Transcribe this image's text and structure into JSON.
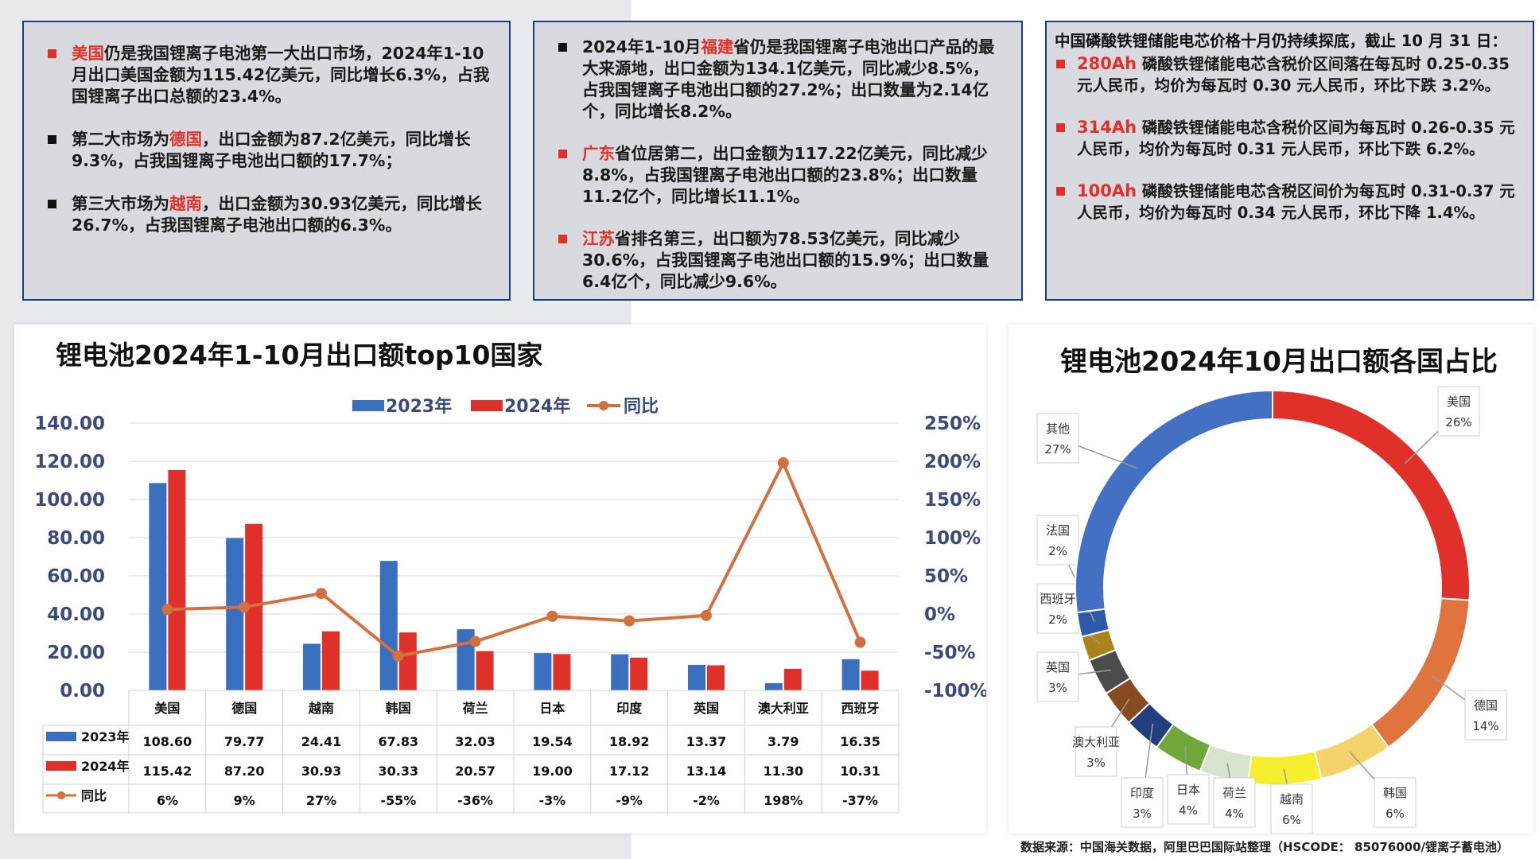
{
  "markets_box": {
    "b1": {
      "hl": "美国",
      "rest": "仍是我国锂离子电池第一大出口市场，2024年1-10月出口美国金额为115.42亿美元，同比增长6.3%，占我国锂离子出口总额的23.4%。"
    },
    "b2": {
      "pre": "第二大市场为",
      "hl": "德国",
      "rest": "，出口金额为87.2亿美元，同比增长9.3%，占我国锂离子电池出口额的17.7%；"
    },
    "b3": {
      "pre": "第三大市场为",
      "hl": "越南",
      "rest": "，出口金额为30.93亿美元，同比增长26.7%，占我国锂离子电池出口额的6.3%。"
    }
  },
  "provinces_box": {
    "b1": {
      "pre": "2024年1-10月",
      "hl": "福建",
      "rest": "省仍是我国锂离子电池出口产品的最大来源地，出口金额为134.1亿美元，同比减少8.5%，占我国锂离子电池出口额的27.2%；出口数量为2.14亿个，同比增长8.2%。"
    },
    "b2": {
      "hl": "广东",
      "rest": "省位居第二，出口金额为117.22亿美元，同比减少8.8%，占我国锂离子电池出口额的23.8%；出口数量11.2亿个，同比增长11.1%。"
    },
    "b3": {
      "hl": "江苏",
      "rest": "省排名第三，出口额为78.53亿美元，同比减少30.6%，占我国锂离子电池出口额的15.9%；出口数量6.4亿个，同比减少9.6%。"
    }
  },
  "prices_box": {
    "intro": "中国磷酸铁锂储能电芯价格十月仍持续探底，截止 10 月 31 日：",
    "b1": {
      "hl": "280Ah",
      "rest": " 磷酸铁锂储能电芯含税价区间落在每瓦时 0.25-0.35 元人民币，均价为每瓦时 0.30 元人民币，环比下跌 3.2%。"
    },
    "b2": {
      "hl": "314Ah",
      "rest": " 磷酸铁锂储能电芯含税价区间为每瓦时 0.26-0.35 元人民币，均价为每瓦时 0.31 元人民币，环比下跌 6.2%。"
    },
    "b3": {
      "hl": "100Ah",
      "rest": " 磷酸铁锂储能电芯含税区间价为每瓦时 0.31-0.37 元人民币，均价为每瓦时 0.34 元人民币，环比下降 1.4%。"
    }
  },
  "source_note": "数据来源：中国海关数据，阿里巴巴国际站整理（HSCODE： 85076000/锂离子蓄电池）",
  "colors": {
    "blue": "#3a6fc0",
    "red": "#e0302a",
    "orange": "#d4703f",
    "highlight": "#e0302a"
  },
  "chart_data": [
    {
      "type": "bar",
      "title": "锂电池2024年1-10月出口额top10国家",
      "categories": [
        "美国",
        "德国",
        "越南",
        "韩国",
        "荷兰",
        "日本",
        "印度",
        "英国",
        "澳大利亚",
        "西班牙"
      ],
      "series": [
        {
          "name": "2023年",
          "type": "bar",
          "axis": "left",
          "color": "#3a6fc0",
          "values": [
            108.6,
            79.77,
            24.41,
            67.83,
            32.03,
            19.54,
            18.92,
            13.37,
            3.79,
            16.35
          ],
          "labels": [
            "108.60",
            "79.77",
            "24.41",
            "67.83",
            "32.03",
            "19.54",
            "18.92",
            "13.37",
            "3.79",
            "16.35"
          ]
        },
        {
          "name": "2024年",
          "type": "bar",
          "axis": "left",
          "color": "#e0302a",
          "values": [
            115.42,
            87.2,
            30.93,
            30.33,
            20.57,
            19.0,
            17.12,
            13.14,
            11.3,
            10.31
          ],
          "labels": [
            "115.42",
            "87.20",
            "30.93",
            "30.33",
            "20.57",
            "19.00",
            "17.12",
            "13.14",
            "11.30",
            "10.31"
          ]
        },
        {
          "name": "同比",
          "type": "line",
          "axis": "right",
          "color": "#d4703f",
          "values": [
            6,
            9,
            27,
            -55,
            -36,
            -3,
            -9,
            -2,
            198,
            -37
          ],
          "labels": [
            "6%",
            "9%",
            "27%",
            "-55%",
            "-36%",
            "-3%",
            "-9%",
            "-2%",
            "198%",
            "-37%"
          ]
        }
      ],
      "y_left": {
        "min": 0,
        "max": 140,
        "step": 20,
        "ticks": [
          "0.00",
          "20.00",
          "40.00",
          "60.00",
          "80.00",
          "100.00",
          "120.00",
          "140.00"
        ]
      },
      "y_right": {
        "min": -100,
        "max": 250,
        "step": 50,
        "ticks": [
          "-100%",
          "-50%",
          "0%",
          "50%",
          "100%",
          "150%",
          "200%",
          "250%"
        ]
      },
      "grid": true,
      "legend": "top-center",
      "data_table": true
    },
    {
      "type": "pie",
      "title": "锂电池2024年10月出口额各国占比",
      "slices": [
        {
          "label": "美国",
          "value": 26,
          "text": "26%",
          "color": "#e0302a"
        },
        {
          "label": "德国",
          "value": 14,
          "text": "14%",
          "color": "#e0743f"
        },
        {
          "label": "韩国",
          "value": 6,
          "text": "6%",
          "color": "#f4d46a"
        },
        {
          "label": "越南",
          "value": 6,
          "text": "6%",
          "color": "#f6ee2e"
        },
        {
          "label": "荷兰",
          "value": 4,
          "text": "4%",
          "color": "#d9e4cf"
        },
        {
          "label": "日本",
          "value": 4,
          "text": "4%",
          "color": "#6fa83a"
        },
        {
          "label": "印度",
          "value": 3,
          "text": "3%",
          "color": "#233f80"
        },
        {
          "label": "澳大利亚",
          "value": 3,
          "text": "3%",
          "color": "#8a4a1f"
        },
        {
          "label": "英国",
          "value": 3,
          "text": "3%",
          "color": "#4c4c4c"
        },
        {
          "label": "西班牙",
          "value": 2,
          "text": "2%",
          "color": "#a8841a"
        },
        {
          "label": "法国",
          "value": 2,
          "text": "2%",
          "color": "#2d5aa8"
        },
        {
          "label": "其他",
          "value": 27,
          "text": "27%",
          "color": "#4470c4"
        }
      ],
      "donut": true
    }
  ]
}
